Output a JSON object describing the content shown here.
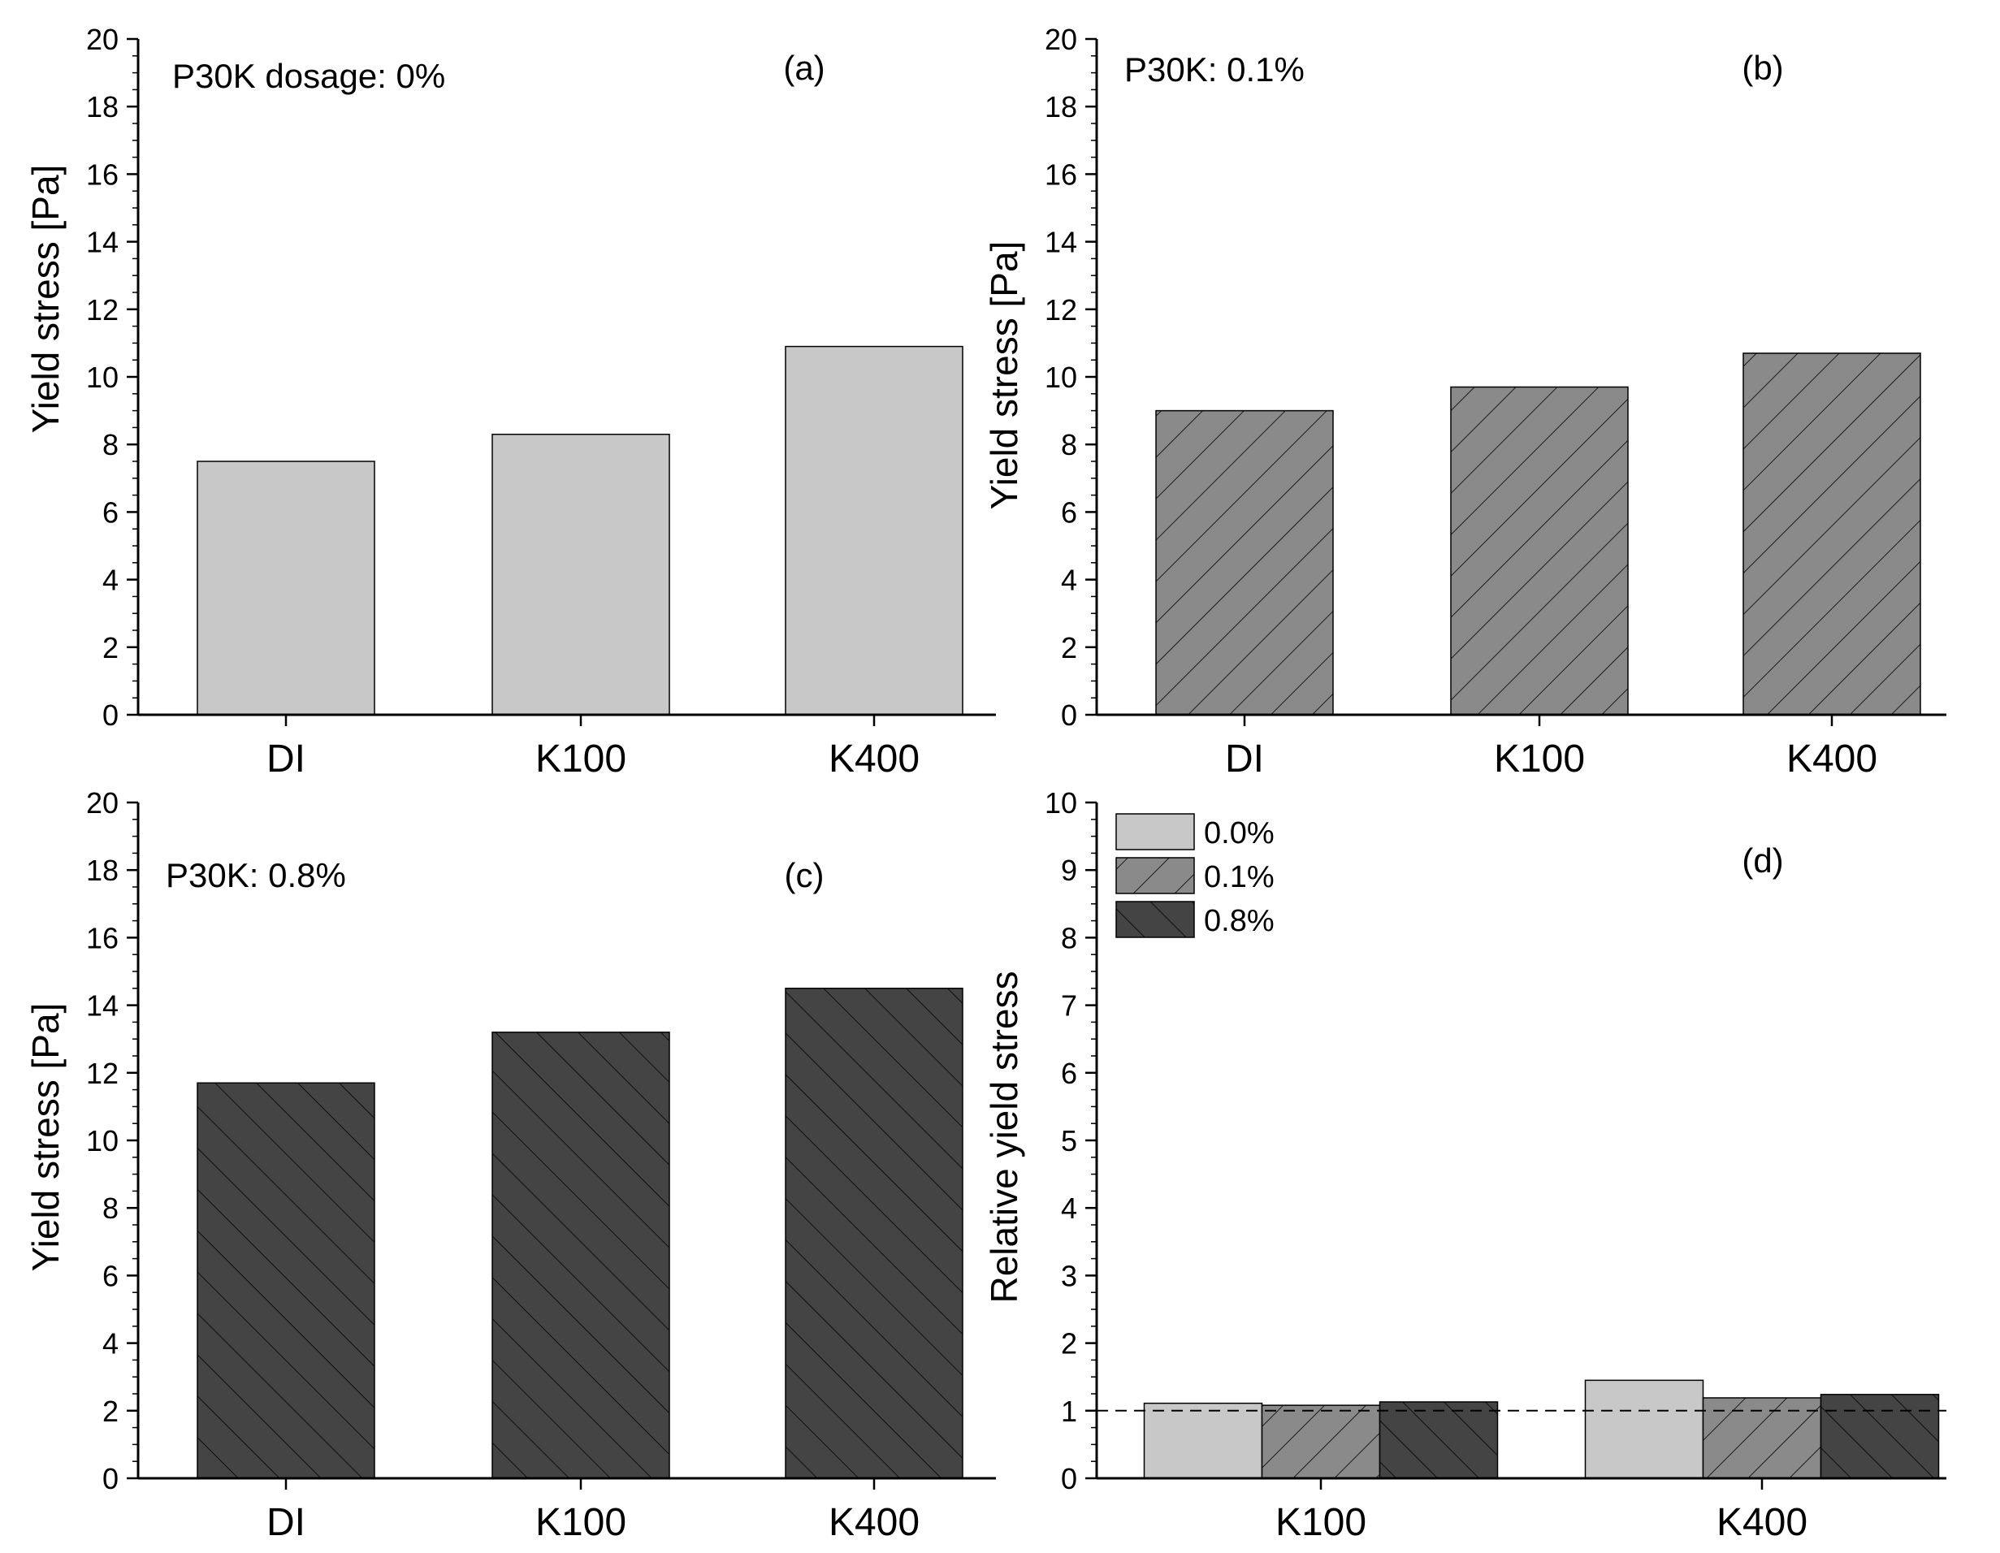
{
  "chart_data": [
    {
      "id": "a",
      "type": "bar",
      "panel_label": "(a)",
      "note": "P30K dosage: 0%",
      "ylabel": "Yield stress [Pa]",
      "xlabel": "",
      "ylim": [
        0,
        20
      ],
      "yticks": [
        0,
        2,
        4,
        6,
        8,
        10,
        12,
        14,
        16,
        18,
        20
      ],
      "categories": [
        "DI",
        "K100",
        "K400"
      ],
      "series": [
        {
          "name": "0.0%",
          "color": "#c8c8c8",
          "pattern": "none",
          "values": [
            7.5,
            8.3,
            10.9
          ]
        }
      ]
    },
    {
      "id": "b",
      "type": "bar",
      "panel_label": "(b)",
      "note": "P30K: 0.1%",
      "ylabel": "Yield stress [Pa]",
      "xlabel": "",
      "ylim": [
        0,
        20
      ],
      "yticks": [
        0,
        2,
        4,
        6,
        8,
        10,
        12,
        14,
        16,
        18,
        20
      ],
      "categories": [
        "DI",
        "K100",
        "K400"
      ],
      "series": [
        {
          "name": "0.1%",
          "color": "#8a8a8a",
          "pattern": "forward",
          "values": [
            9.0,
            9.7,
            10.7
          ]
        }
      ]
    },
    {
      "id": "c",
      "type": "bar",
      "panel_label": "(c)",
      "note": "P30K: 0.8%",
      "ylabel": "Yield stress [Pa]",
      "xlabel": "",
      "ylim": [
        0,
        20
      ],
      "yticks": [
        0,
        2,
        4,
        6,
        8,
        10,
        12,
        14,
        16,
        18,
        20
      ],
      "categories": [
        "DI",
        "K100",
        "K400"
      ],
      "series": [
        {
          "name": "0.8%",
          "color": "#444444",
          "pattern": "back",
          "values": [
            11.7,
            13.2,
            14.5
          ]
        }
      ]
    },
    {
      "id": "d",
      "type": "bar",
      "panel_label": "(d)",
      "note": "",
      "ylabel": "Relative yield stress",
      "xlabel": "",
      "ylim": [
        0,
        10
      ],
      "yticks": [
        0,
        1,
        2,
        3,
        4,
        5,
        6,
        7,
        8,
        9,
        10
      ],
      "reference_line": 1,
      "categories": [
        "K100",
        "K400"
      ],
      "legend": {
        "position": "top-left"
      },
      "series": [
        {
          "name": "0.0%",
          "color": "#c8c8c8",
          "pattern": "none",
          "values": [
            1.11,
            1.45
          ]
        },
        {
          "name": "0.1%",
          "color": "#8a8a8a",
          "pattern": "forward",
          "values": [
            1.08,
            1.19
          ]
        },
        {
          "name": "0.8%",
          "color": "#444444",
          "pattern": "back",
          "values": [
            1.13,
            1.24
          ]
        }
      ]
    }
  ]
}
